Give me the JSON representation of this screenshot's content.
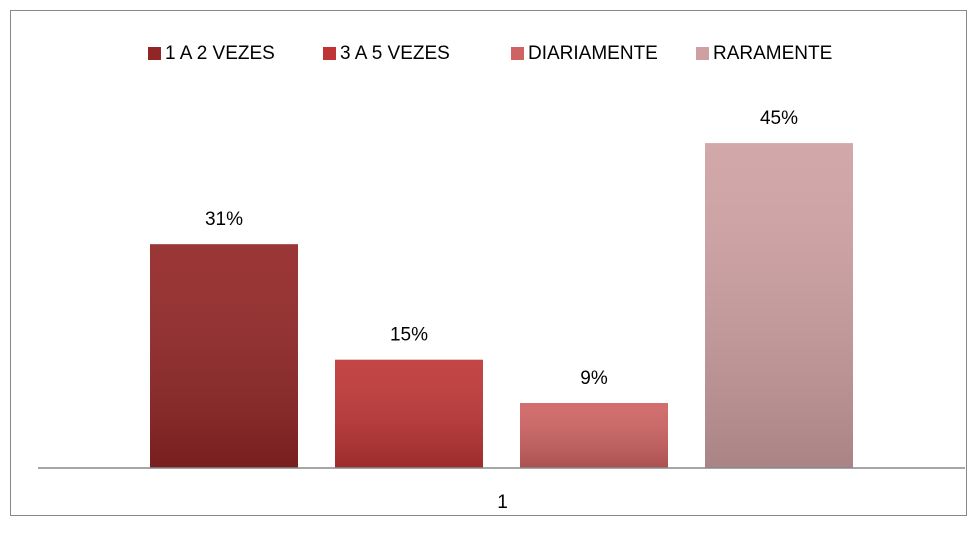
{
  "chart_data": {
    "type": "bar",
    "categories": [
      "1"
    ],
    "series": [
      {
        "name": "1 A 2 VEZES",
        "color": "#922525",
        "values": [
          31
        ],
        "value_labels": [
          "31%"
        ]
      },
      {
        "name": "3 A 5 VEZES",
        "color": "#bf3535",
        "values": [
          15
        ],
        "value_labels": [
          "15%"
        ]
      },
      {
        "name": "DIARIAMENTE",
        "color": "#cf6262",
        "values": [
          9
        ],
        "value_labels": [
          "9%"
        ]
      },
      {
        "name": "RARAMENTE",
        "color": "#cfa0a2",
        "values": [
          45
        ],
        "value_labels": [
          "45%"
        ]
      }
    ],
    "ylim": [
      0,
      50
    ],
    "legend": "top"
  }
}
